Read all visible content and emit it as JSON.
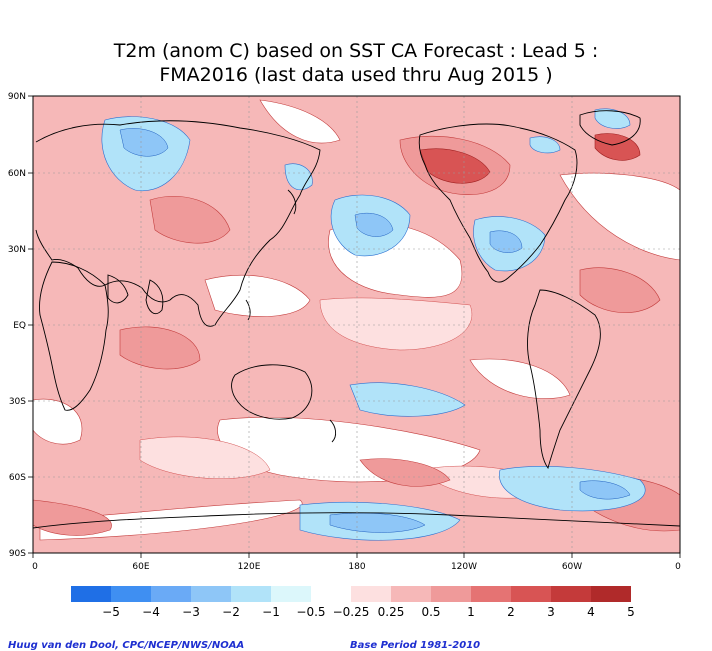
{
  "title": {
    "line1": "T2m (anom C) based on SST CA Forecast : Lead 5 :",
    "line2": "FMA2016 (last data used thru Aug 2015 )"
  },
  "lat_labels": [
    "90N",
    "60N",
    "30N",
    "EQ",
    "30S",
    "60S",
    "90S"
  ],
  "lon_labels": [
    "0",
    "60E",
    "120E",
    "180",
    "120W",
    "60W",
    "0"
  ],
  "legend": {
    "colors": [
      "#1f6fe6",
      "#3f8ff2",
      "#6aaaf6",
      "#8ec6f7",
      "#b1e3f9",
      "#dcf7fb",
      "#ffffff",
      "#fde0e0",
      "#f6b8b8",
      "#ef9a9a",
      "#e57373",
      "#d85454",
      "#c43a3a",
      "#b02a2a"
    ],
    "ticks": [
      "−5",
      "−4",
      "−3",
      "−2",
      "−1",
      "−0.5",
      "−0.25",
      "0.25",
      "0.5",
      "1",
      "2",
      "3",
      "4",
      "5"
    ]
  },
  "footer": {
    "credit": "Huug van den Dool, CPC/NCEP/NWS/NOAA",
    "base_period": "Base Period 1981-2010"
  }
}
